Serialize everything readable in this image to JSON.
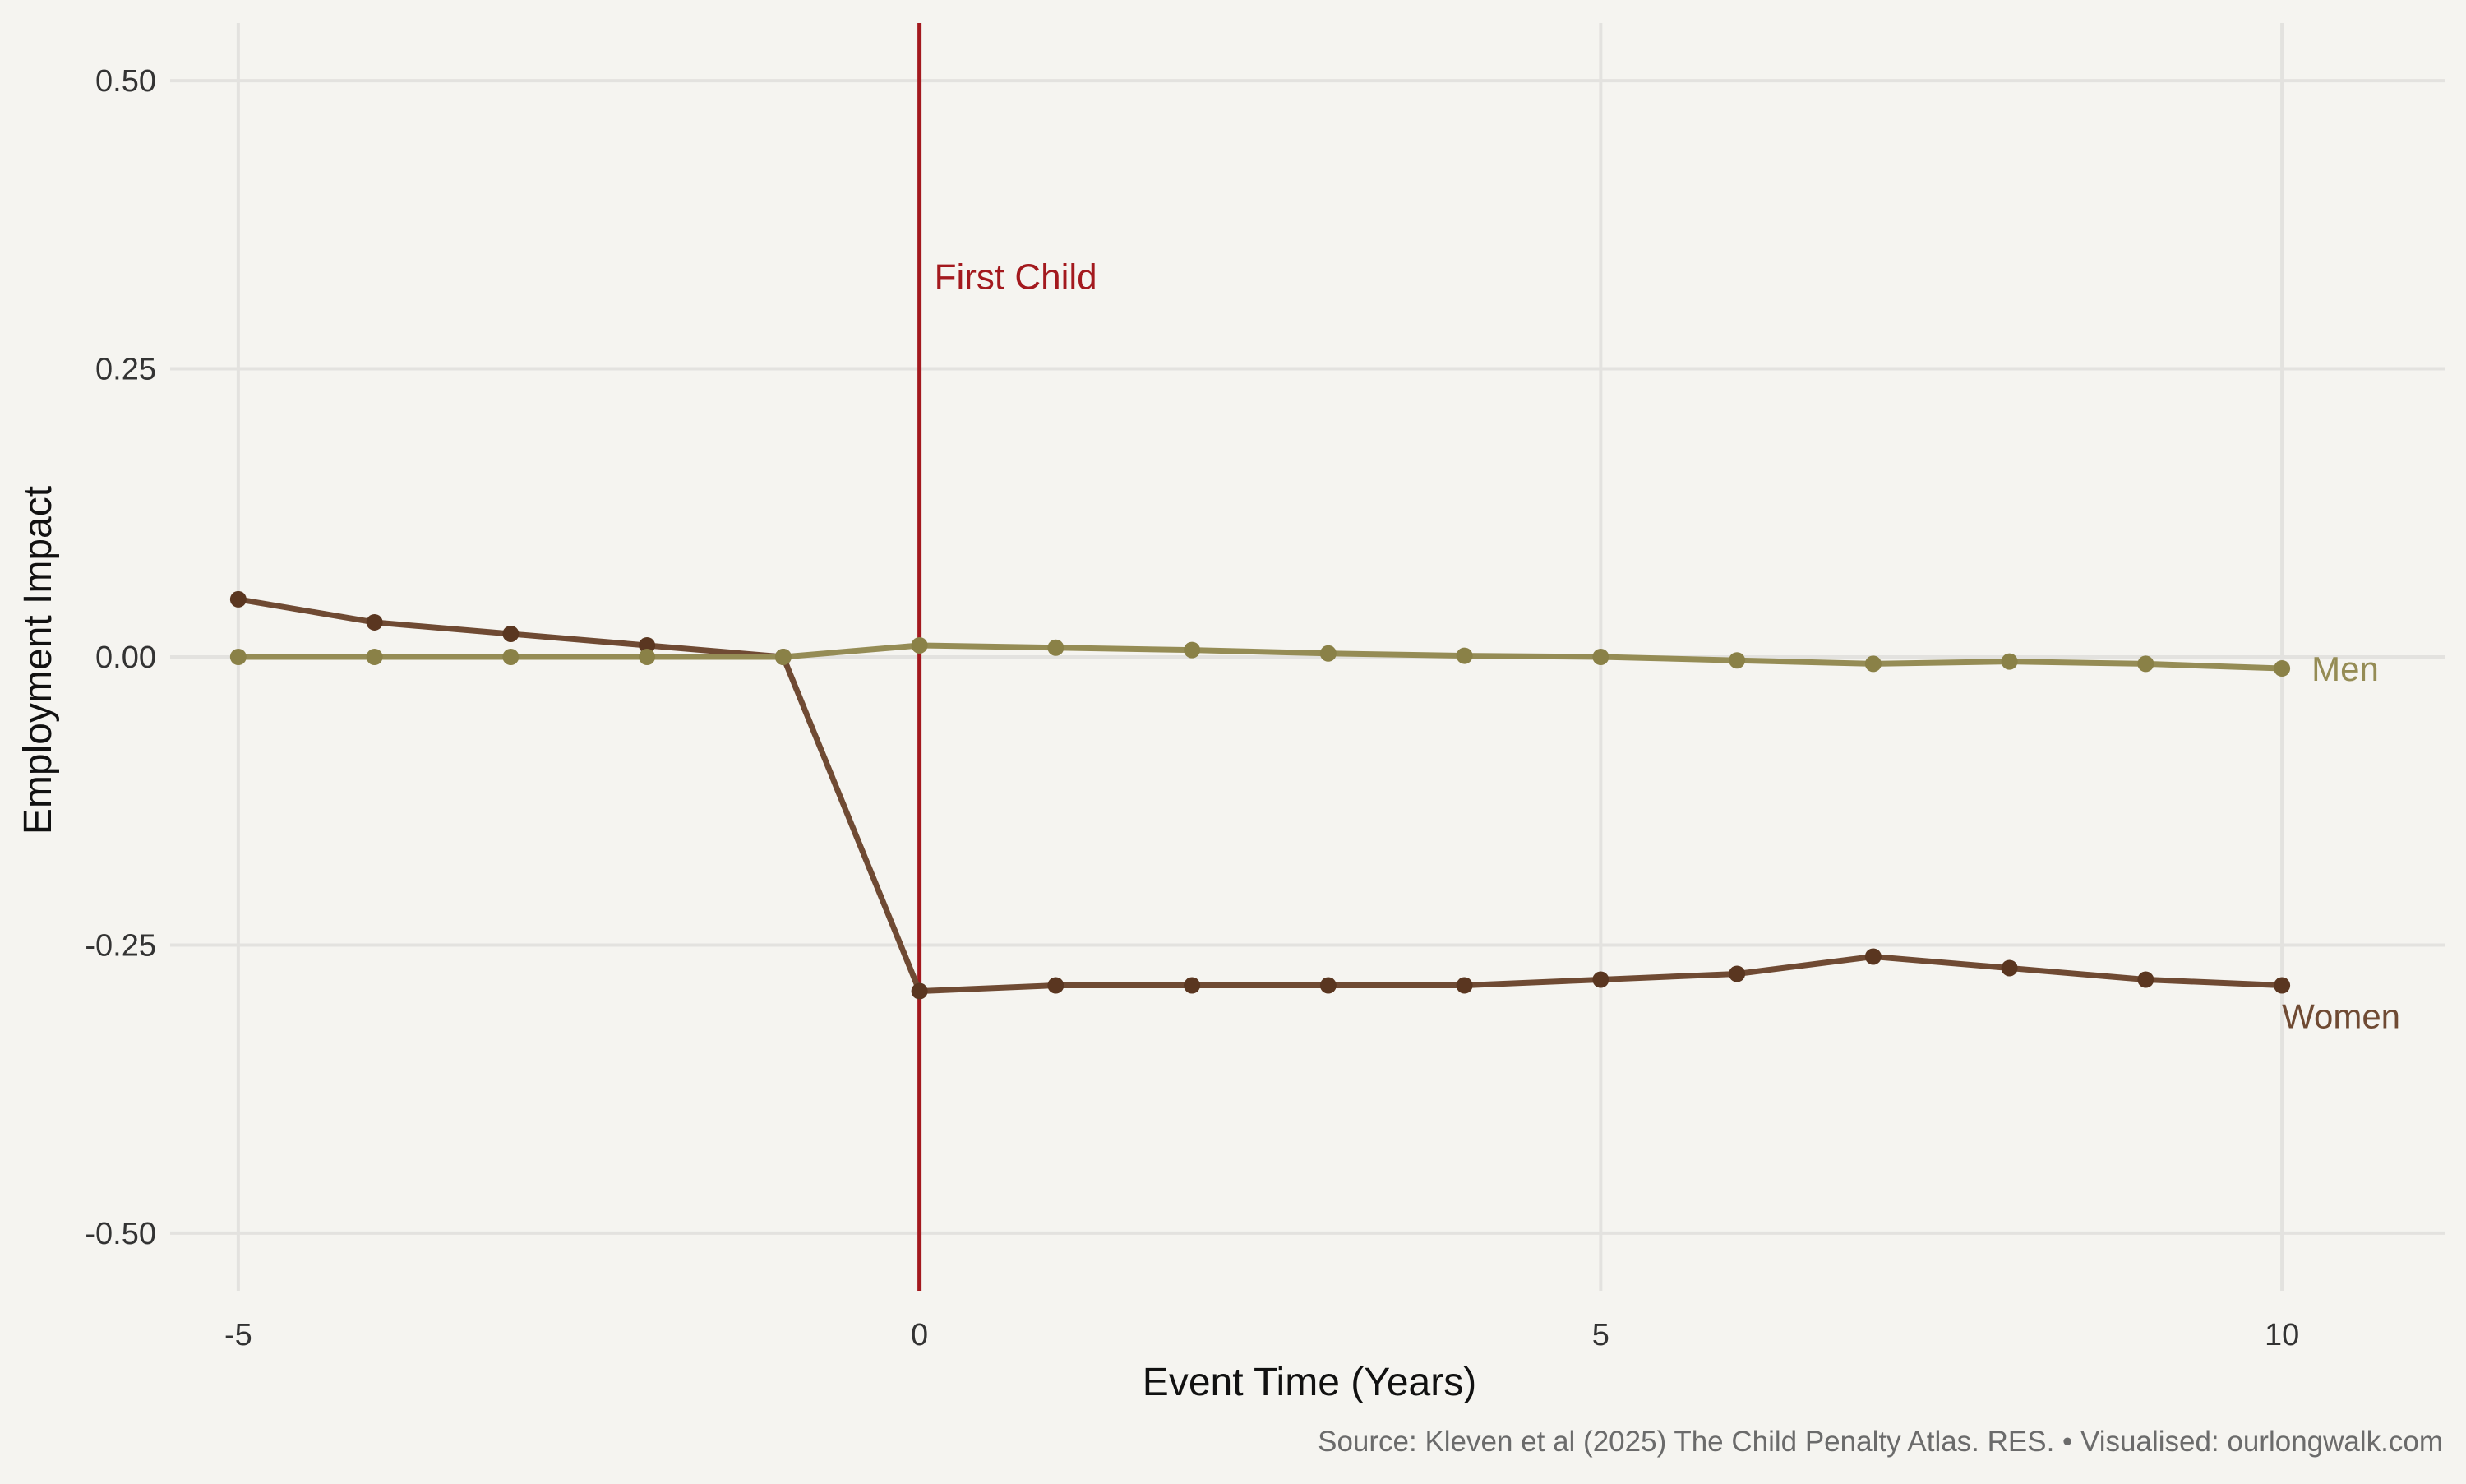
{
  "caption": "Source: Kleven et al (2025) The Child Penalty Atlas. RES. • Visualised: ourlongwalk.com",
  "chart_data": {
    "type": "line",
    "title": "",
    "xlabel": "Event Time (Years)",
    "ylabel": "Employment Impact",
    "xlim": [
      -5.5,
      11.2
    ],
    "ylim": [
      -0.55,
      0.55
    ],
    "xticks": [
      -5,
      0,
      5,
      10
    ],
    "yticks": [
      0.5,
      0.25,
      0,
      -0.25,
      -0.5
    ],
    "xtick_labels": [
      "-5",
      "0",
      "5",
      "10"
    ],
    "ytick_labels": [
      "0.50",
      "0.25",
      "0.00",
      "-0.25",
      "-0.50"
    ],
    "grid": true,
    "legend": "none",
    "x": [
      -5,
      -4,
      -3,
      -2,
      -1,
      0,
      1,
      2,
      3,
      4,
      5,
      6,
      7,
      8,
      9,
      10
    ],
    "series": [
      {
        "name": "Women",
        "color": "#6f4a33",
        "point_color": "#5a3620",
        "values": [
          0.05,
          0.03,
          0.02,
          0.01,
          0.0,
          -0.29,
          -0.285,
          -0.285,
          -0.285,
          -0.285,
          -0.28,
          -0.275,
          -0.26,
          -0.27,
          -0.28,
          -0.285
        ]
      },
      {
        "name": "Men",
        "color": "#958c55",
        "point_color": "#8a8147",
        "values": [
          0.0,
          0.0,
          0.0,
          0.0,
          0.0,
          0.01,
          0.008,
          0.006,
          0.003,
          0.001,
          0.0,
          -0.003,
          -0.006,
          -0.004,
          -0.006,
          -0.01
        ]
      }
    ],
    "annotations": [
      {
        "type": "vline",
        "x": 0,
        "text": "First Child",
        "label_y": 0.33,
        "color": "#a3191e"
      }
    ]
  }
}
